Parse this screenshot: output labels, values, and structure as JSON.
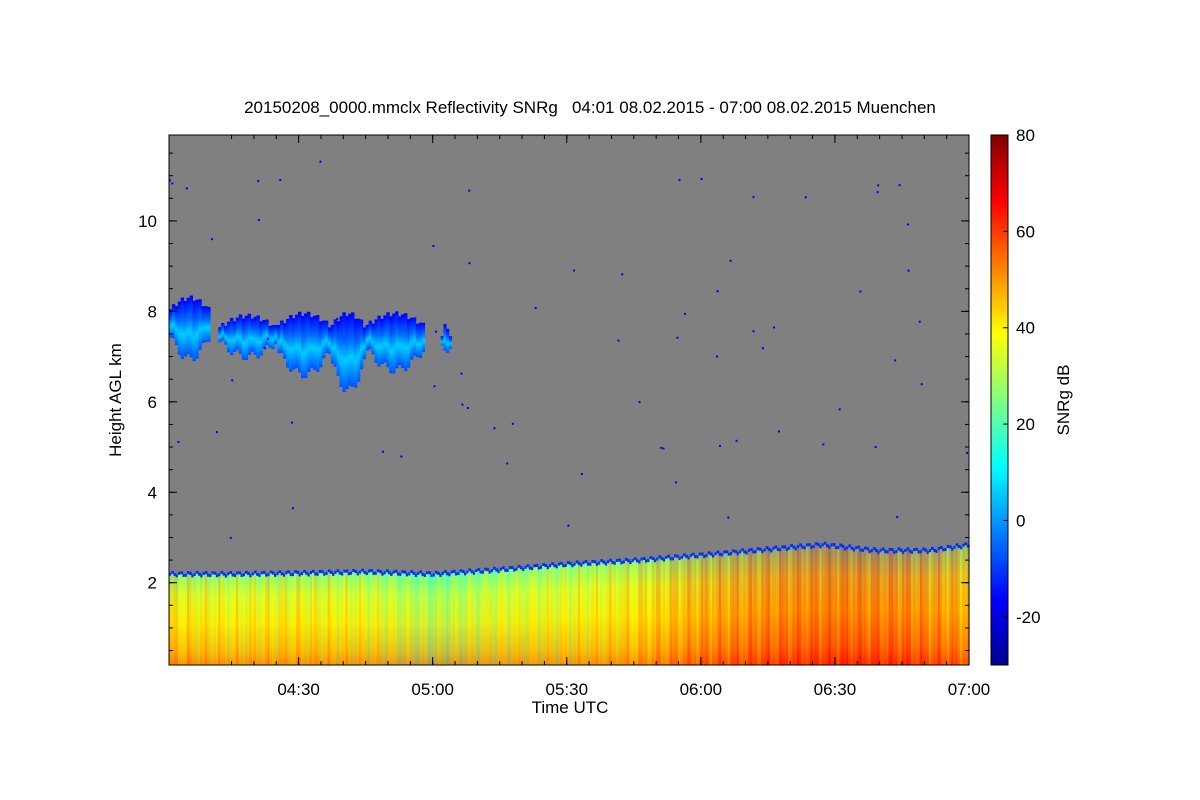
{
  "chart_data": {
    "type": "heatmap",
    "title": "20150208_0000.mmclx Reflectivity SNRg   04:01 08.02.2015 - 07:00 08.02.2015 Muenchen",
    "xlabel": "Time UTC",
    "ylabel": "Height AGL km",
    "colorbar_label": "SNRg dB",
    "x_range_hours": [
      4.0167,
      7.0
    ],
    "x_ticks": [
      {
        "label": "04:30",
        "value": 4.5
      },
      {
        "label": "05:00",
        "value": 5.0
      },
      {
        "label": "05:30",
        "value": 5.5
      },
      {
        "label": "06:00",
        "value": 6.0
      },
      {
        "label": "06:30",
        "value": 6.5
      },
      {
        "label": "07:00",
        "value": 7.0
      }
    ],
    "y_range_km": [
      0.18,
      11.9
    ],
    "y_ticks": [
      {
        "label": "2",
        "value": 2
      },
      {
        "label": "4",
        "value": 4
      },
      {
        "label": "6",
        "value": 6
      },
      {
        "label": "8",
        "value": 8
      },
      {
        "label": "10",
        "value": 10
      }
    ],
    "colorbar_range_db": [
      -30,
      80
    ],
    "colorbar_ticks": [
      {
        "label": "-20",
        "value": -20
      },
      {
        "label": "0",
        "value": 0
      },
      {
        "label": "20",
        "value": 20
      },
      {
        "label": "40",
        "value": 40
      },
      {
        "label": "60",
        "value": 60
      },
      {
        "label": "80",
        "value": 80
      }
    ],
    "colormap": [
      "#00008f",
      "#0000ff",
      "#0080ff",
      "#00ffff",
      "#80ff80",
      "#ffff00",
      "#ff8000",
      "#ff0000",
      "#800000"
    ],
    "background_color": "#808080",
    "boundary_layer_top_km": [
      [
        4.0167,
        2.2
      ],
      [
        4.25,
        2.2
      ],
      [
        4.5,
        2.22
      ],
      [
        4.75,
        2.25
      ],
      [
        5.0,
        2.2
      ],
      [
        5.25,
        2.3
      ],
      [
        5.5,
        2.42
      ],
      [
        5.75,
        2.5
      ],
      [
        6.0,
        2.62
      ],
      [
        6.25,
        2.75
      ],
      [
        6.45,
        2.85
      ],
      [
        6.65,
        2.72
      ],
      [
        6.85,
        2.72
      ],
      [
        7.0,
        2.85
      ]
    ],
    "boundary_layer_snr_db": [
      [
        4.0167,
        42
      ],
      [
        4.25,
        38
      ],
      [
        4.5,
        40
      ],
      [
        4.75,
        36
      ],
      [
        5.0,
        26
      ],
      [
        5.25,
        34
      ],
      [
        5.5,
        36
      ],
      [
        5.75,
        42
      ],
      [
        6.0,
        52
      ],
      [
        6.25,
        58
      ],
      [
        6.5,
        62
      ],
      [
        6.75,
        60
      ],
      [
        7.0,
        52
      ]
    ],
    "cirrus_segments": [
      {
        "start": 4.0167,
        "end": 4.17,
        "top_km": 8.3,
        "bottom_km": 6.95,
        "snr_db": -5
      },
      {
        "start": 4.2,
        "end": 4.42,
        "top_km": 7.9,
        "bottom_km": 7.0,
        "snr_db": 2
      },
      {
        "start": 4.42,
        "end": 4.62,
        "top_km": 7.95,
        "bottom_km": 6.6,
        "snr_db": 4
      },
      {
        "start": 4.62,
        "end": 4.75,
        "top_km": 7.95,
        "bottom_km": 6.25,
        "snr_db": 0
      },
      {
        "start": 4.75,
        "end": 4.97,
        "top_km": 7.95,
        "bottom_km": 6.7,
        "snr_db": -2
      },
      {
        "start": 5.03,
        "end": 5.07,
        "top_km": 7.7,
        "bottom_km": 7.0,
        "snr_db": -5
      }
    ]
  }
}
